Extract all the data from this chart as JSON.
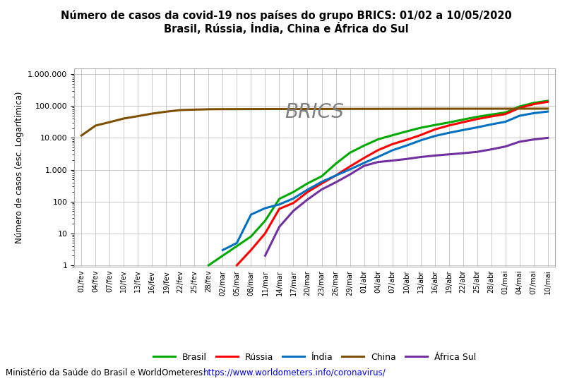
{
  "title_line1": "Número de casos da covid-19 nos países do grupo BRICS: 01/02 a 10/05/2020",
  "title_line2": "Brasil, Rússia, Índia, China e África do Sul",
  "ylabel": "Número de casos (esc. Logarítimica)",
  "watermark": "BRICS",
  "footnote_plain": "Ministério da Saúde do Brasil e WorldOmeteres: ",
  "footnote_url": "https://www.worldometers.info/coronavirus/",
  "x_labels": [
    "01/fev",
    "04/fev",
    "07/fev",
    "10/fev",
    "13/fev",
    "16/fev",
    "19/fev",
    "22/fev",
    "25/fev",
    "28/fev",
    "02/mar",
    "05/mar",
    "08/mar",
    "11/mar",
    "14/mar",
    "17/mar",
    "20/mar",
    "23/mar",
    "26/mar",
    "29/mar",
    "01/abr",
    "04/abr",
    "07/abr",
    "10/abr",
    "13/abr",
    "16/abr",
    "19/abr",
    "22/abr",
    "25/abr",
    "28/abr",
    "01/mai",
    "04/mai",
    "07/mai",
    "10/mai"
  ],
  "colors": {
    "Brasil": "#00aa00",
    "Rússia": "#ff0000",
    "Índia": "#0070c0",
    "China": "#7f4f00",
    "África Sul": "#7030a0"
  },
  "data": {
    "China": [
      11821,
      24324,
      31211,
      40553,
      48206,
      57805,
      66492,
      74675,
      77150,
      79251,
      79824,
      80026,
      80239,
      80534,
      80651,
      80757,
      80860,
      80928,
      81340,
      81470,
      81554,
      81620,
      81669,
      81907,
      82052,
      82160,
      82249,
      82341,
      82396,
      82447,
      82543,
      82631,
      82718,
      82836
    ],
    "Brasil": [
      null,
      null,
      null,
      null,
      null,
      null,
      null,
      null,
      null,
      1,
      2,
      4,
      8,
      25,
      121,
      200,
      372,
      621,
      1546,
      3417,
      5717,
      9056,
      12056,
      15927,
      20727,
      25262,
      30425,
      37510,
      45757,
      54000,
      62589,
      96559,
      125218,
      145328
    ],
    "Rússia": [
      null,
      null,
      null,
      null,
      null,
      null,
      null,
      null,
      null,
      null,
      null,
      1,
      3,
      10,
      59,
      90,
      199,
      367,
      658,
      1264,
      2337,
      4149,
      6343,
      8672,
      12240,
      18328,
      24490,
      31043,
      39031,
      47121,
      55787,
      87147,
      114431,
      135996
    ],
    "Índia": [
      null,
      null,
      null,
      null,
      null,
      null,
      null,
      null,
      null,
      null,
      3,
      5,
      39,
      62,
      81,
      125,
      236,
      415,
      657,
      1024,
      1637,
      2547,
      4067,
      5734,
      8356,
      11439,
      14378,
      17615,
      21393,
      26496,
      32062,
      49391,
      59662,
      67152
    ],
    "África Sul": [
      null,
      null,
      null,
      null,
      null,
      null,
      null,
      null,
      null,
      null,
      null,
      null,
      null,
      2,
      16,
      51,
      116,
      240,
      402,
      709,
      1326,
      1749,
      1934,
      2173,
      2506,
      2783,
      3034,
      3300,
      3635,
      4361,
      5350,
      7572,
      8895,
      10015
    ]
  }
}
